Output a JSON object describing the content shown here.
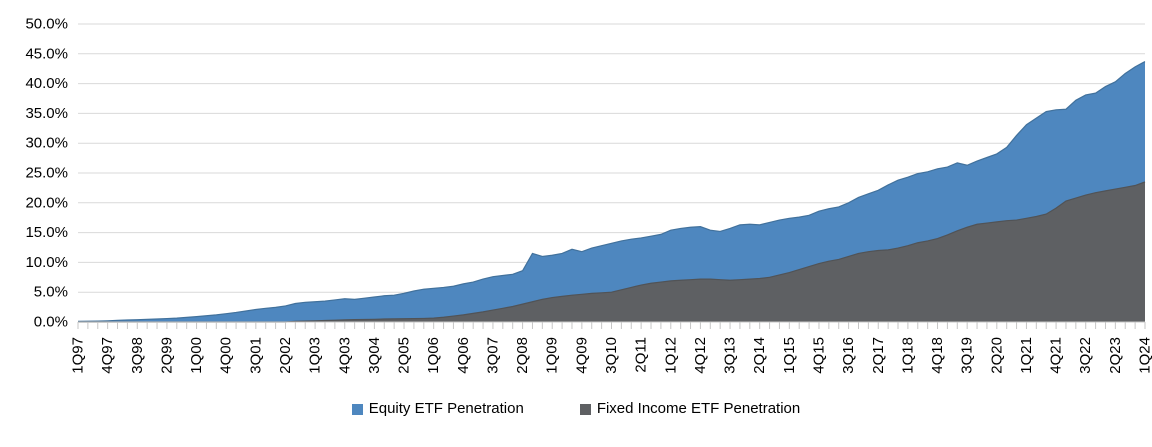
{
  "chart_data": {
    "type": "area",
    "title": "",
    "xlabel": "",
    "ylabel": "",
    "grid": true,
    "legend_position": "bottom-center",
    "overlay": true,
    "y_axis": {
      "min": 0,
      "max": 50,
      "step": 5,
      "tick_labels": [
        "0.0%",
        "5.0%",
        "10.0%",
        "15.0%",
        "20.0%",
        "25.0%",
        "30.0%",
        "35.0%",
        "40.0%",
        "45.0%",
        "50.0%"
      ]
    },
    "x_tick_label_interval": 3,
    "x_labels_shown": [
      "1Q97",
      "4Q97",
      "3Q98",
      "2Q99",
      "1Q00",
      "4Q00",
      "3Q01",
      "2Q02",
      "1Q03",
      "4Q03",
      "3Q04",
      "2Q05",
      "1Q06",
      "4Q06",
      "3Q07",
      "2Q08",
      "1Q09",
      "4Q09",
      "3Q10",
      "2Q11",
      "1Q12",
      "4Q12",
      "3Q13",
      "2Q14",
      "1Q15",
      "4Q15",
      "3Q16",
      "2Q17",
      "1Q18",
      "4Q18",
      "3Q19",
      "2Q20",
      "1Q21",
      "4Q21",
      "3Q22",
      "2Q23",
      "1Q24"
    ],
    "categories": [
      "1Q97",
      "2Q97",
      "3Q97",
      "4Q97",
      "1Q98",
      "2Q98",
      "3Q98",
      "4Q98",
      "1Q99",
      "2Q99",
      "3Q99",
      "4Q99",
      "1Q00",
      "2Q00",
      "3Q00",
      "4Q00",
      "1Q01",
      "2Q01",
      "3Q01",
      "4Q01",
      "1Q02",
      "2Q02",
      "3Q02",
      "4Q02",
      "1Q03",
      "2Q03",
      "3Q03",
      "4Q03",
      "1Q04",
      "2Q04",
      "3Q04",
      "4Q04",
      "1Q05",
      "2Q05",
      "3Q05",
      "4Q05",
      "1Q06",
      "2Q06",
      "3Q06",
      "4Q06",
      "1Q07",
      "2Q07",
      "3Q07",
      "4Q07",
      "1Q08",
      "2Q08",
      "3Q08",
      "4Q08",
      "1Q09",
      "2Q09",
      "3Q09",
      "4Q09",
      "1Q10",
      "2Q10",
      "3Q10",
      "4Q10",
      "1Q11",
      "2Q11",
      "3Q11",
      "4Q11",
      "1Q12",
      "2Q12",
      "3Q12",
      "4Q12",
      "1Q13",
      "2Q13",
      "3Q13",
      "4Q13",
      "1Q14",
      "2Q14",
      "3Q14",
      "4Q14",
      "1Q15",
      "2Q15",
      "3Q15",
      "4Q15",
      "1Q16",
      "2Q16",
      "3Q16",
      "4Q16",
      "1Q17",
      "2Q17",
      "3Q17",
      "4Q17",
      "1Q18",
      "2Q18",
      "3Q18",
      "4Q18",
      "1Q19",
      "2Q19",
      "3Q19",
      "4Q19",
      "1Q20",
      "2Q20",
      "3Q20",
      "4Q20",
      "1Q21",
      "2Q21",
      "3Q21",
      "4Q21",
      "1Q22",
      "2Q22",
      "3Q22",
      "4Q22",
      "1Q23",
      "2Q23",
      "3Q23",
      "4Q23",
      "1Q24"
    ],
    "series": [
      {
        "name": "Equity ETF Penetration",
        "color": "#4E87BF",
        "edge_color": "#41719C",
        "unit": "%",
        "values": [
          0.1,
          0.12,
          0.15,
          0.2,
          0.28,
          0.33,
          0.38,
          0.45,
          0.5,
          0.58,
          0.65,
          0.78,
          0.9,
          1.05,
          1.2,
          1.4,
          1.6,
          1.85,
          2.1,
          2.3,
          2.45,
          2.7,
          3.1,
          3.3,
          3.4,
          3.5,
          3.7,
          3.9,
          3.8,
          4.0,
          4.2,
          4.4,
          4.5,
          4.8,
          5.2,
          5.5,
          5.65,
          5.8,
          6.0,
          6.4,
          6.7,
          7.2,
          7.6,
          7.8,
          8.0,
          8.6,
          11.5,
          11.0,
          11.2,
          11.5,
          12.2,
          11.8,
          12.4,
          12.8,
          13.2,
          13.6,
          13.9,
          14.1,
          14.4,
          14.7,
          15.4,
          15.7,
          15.9,
          16.0,
          15.4,
          15.2,
          15.7,
          16.3,
          16.4,
          16.3,
          16.7,
          17.1,
          17.4,
          17.6,
          17.9,
          18.6,
          19.0,
          19.3,
          20.0,
          20.9,
          21.5,
          22.1,
          23.0,
          23.8,
          24.3,
          24.9,
          25.2,
          25.7,
          26.0,
          26.7,
          26.3,
          27.0,
          27.6,
          28.2,
          29.3,
          31.3,
          33.1,
          34.2,
          35.3,
          35.6,
          35.7,
          37.2,
          38.1,
          38.4,
          39.5,
          40.3,
          41.7,
          42.8,
          43.7
        ]
      },
      {
        "name": "Fixed Income ETF Penetration",
        "color": "#5E6063",
        "edge_color": "#515356",
        "unit": "%",
        "values": [
          0,
          0,
          0,
          0,
          0,
          0,
          0,
          0,
          0,
          0,
          0,
          0,
          0,
          0,
          0,
          0,
          0,
          0,
          0,
          0,
          0,
          0,
          0.1,
          0.15,
          0.2,
          0.25,
          0.3,
          0.35,
          0.4,
          0.42,
          0.45,
          0.5,
          0.52,
          0.55,
          0.58,
          0.6,
          0.65,
          0.8,
          1.0,
          1.2,
          1.45,
          1.7,
          2.0,
          2.3,
          2.6,
          3.0,
          3.4,
          3.8,
          4.1,
          4.3,
          4.5,
          4.65,
          4.8,
          4.9,
          5.0,
          5.4,
          5.8,
          6.2,
          6.5,
          6.7,
          6.9,
          7.0,
          7.1,
          7.2,
          7.2,
          7.1,
          7.0,
          7.1,
          7.2,
          7.3,
          7.5,
          7.9,
          8.3,
          8.8,
          9.3,
          9.8,
          10.2,
          10.5,
          11.0,
          11.5,
          11.8,
          12.0,
          12.1,
          12.4,
          12.8,
          13.3,
          13.6,
          14.0,
          14.6,
          15.3,
          15.9,
          16.4,
          16.6,
          16.8,
          17.0,
          17.1,
          17.4,
          17.7,
          18.1,
          19.1,
          20.3,
          20.8,
          21.3,
          21.7,
          22.0,
          22.3,
          22.6,
          22.9,
          23.5
        ]
      }
    ],
    "colors": {
      "gridline": "#D9D9D9",
      "axis": "#C6C6C6",
      "text": "#000000",
      "background": "#FFFFFF"
    }
  }
}
